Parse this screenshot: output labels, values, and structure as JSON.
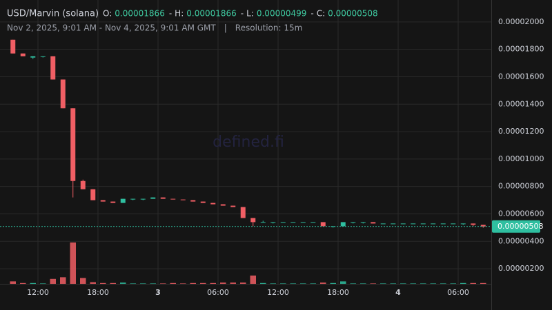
{
  "chart_data": {
    "type": "candlestick",
    "symbol": "USD/Marvin (solana)",
    "legend_values": [
      {
        "label": "O:",
        "value": "0.00001866"
      },
      {
        "label": "H:",
        "value": "0.00001866"
      },
      {
        "label": "L:",
        "value": "0.00000499"
      },
      {
        "label": "C:",
        "value": "0.00000508"
      }
    ],
    "legend_separator": "-",
    "subtitle": "Nov 2, 2025, 9:01 AM - Nov 4, 2025, 9:01 AM GMT",
    "subtitle_separator": "|",
    "resolution": "Resolution: 15m",
    "watermark": "defined.fi",
    "last_price_label": "0.00000508",
    "up_color": "#2fbfa0",
    "down_color": "#f05e64",
    "grid": true,
    "categories": [
      null,
      null,
      null,
      "12:00",
      null,
      null,
      null,
      null,
      null,
      "18:00",
      null,
      null,
      null,
      null,
      null,
      "3",
      null,
      null,
      null,
      null,
      null,
      "06:00",
      null,
      null,
      null,
      null,
      null,
      "12:00",
      null,
      null,
      null,
      null,
      null,
      "18:00",
      null,
      null,
      null,
      null,
      null,
      "4",
      null,
      null,
      null,
      null,
      null,
      "06:00",
      null,
      null
    ],
    "open": [
      1.87e-05,
      1.77e-05,
      1.74e-05,
      1.75e-05,
      1.75e-05,
      1.58e-05,
      1.37e-05,
      8.4e-06,
      7.8e-06,
      7e-06,
      6.9e-06,
      6.8e-06,
      7.1e-06,
      7.1e-06,
      7.1e-06,
      7.2e-06,
      7.1e-06,
      7.05e-06,
      7e-06,
      6.9e-06,
      6.8e-06,
      6.7e-06,
      6.6e-06,
      6.5e-06,
      5.7e-06,
      5.4e-06,
      5.4e-06,
      5.4e-06,
      5.4e-06,
      5.4e-06,
      5.4e-06,
      5.4e-06,
      5.1e-06,
      5.1e-06,
      5.4e-06,
      5.4e-06,
      5.4e-06,
      5.3e-06,
      5.3e-06,
      5.3e-06,
      5.3e-06,
      5.3e-06,
      5.3e-06,
      5.3e-06,
      5.3e-06,
      5.3e-06,
      5.3e-06,
      5.2e-06
    ],
    "high": [
      1.87e-05,
      1.77e-05,
      1.75e-05,
      1.75e-05,
      1.75e-05,
      1.58e-05,
      1.37e-05,
      8.5e-06,
      7.8e-06,
      7e-06,
      6.9e-06,
      7.1e-06,
      7.1e-06,
      7.1e-06,
      7.2e-06,
      7.2e-06,
      7.1e-06,
      7.05e-06,
      7e-06,
      6.9e-06,
      6.8e-06,
      6.7e-06,
      6.6e-06,
      6.5e-06,
      5.7e-06,
      5.5e-06,
      5.4e-06,
      5.4e-06,
      5.4e-06,
      5.4e-06,
      5.4e-06,
      5.4e-06,
      5.1e-06,
      5.4e-06,
      5.4e-06,
      5.4e-06,
      5.4e-06,
      5.3e-06,
      5.3e-06,
      5.3e-06,
      5.3e-06,
      5.3e-06,
      5.3e-06,
      5.3e-06,
      5.3e-06,
      5.3e-06,
      5.3e-06,
      5.2e-06
    ],
    "low": [
      1.77e-05,
      1.75e-05,
      1.73e-05,
      1.74e-05,
      1.58e-05,
      1.37e-05,
      7.2e-06,
      7.8e-06,
      7e-06,
      6.9e-06,
      6.8e-06,
      6.8e-06,
      7e-06,
      7e-06,
      7.1e-06,
      7.1e-06,
      7.05e-06,
      7e-06,
      6.9e-06,
      6.8e-06,
      6.7e-06,
      6.6e-06,
      6.5e-06,
      5.7e-06,
      5.1e-06,
      5.4e-06,
      5.3e-06,
      5.4e-06,
      5.4e-06,
      5.4e-06,
      5.4e-06,
      5.1e-06,
      5e-06,
      5.1e-06,
      5.3e-06,
      5.3e-06,
      5.3e-06,
      5.3e-06,
      5.3e-06,
      5.3e-06,
      5.3e-06,
      5.3e-06,
      5.3e-06,
      5.3e-06,
      5.3e-06,
      5.2e-06,
      5.1e-06,
      4.99e-06
    ],
    "close": [
      1.77e-05,
      1.75e-05,
      1.75e-05,
      1.75e-05,
      1.58e-05,
      1.37e-05,
      8.4e-06,
      7.8e-06,
      7e-06,
      6.9e-06,
      6.8e-06,
      7.1e-06,
      7.1e-06,
      7.1e-06,
      7.2e-06,
      7.1e-06,
      7.05e-06,
      7e-06,
      6.9e-06,
      6.8e-06,
      6.7e-06,
      6.6e-06,
      6.5e-06,
      5.7e-06,
      5.4e-06,
      5.4e-06,
      5.4e-06,
      5.4e-06,
      5.4e-06,
      5.4e-06,
      5.4e-06,
      5.1e-06,
      5.1e-06,
      5.4e-06,
      5.4e-06,
      5.4e-06,
      5.3e-06,
      5.3e-06,
      5.3e-06,
      5.3e-06,
      5.3e-06,
      5.3e-06,
      5.3e-06,
      5.3e-06,
      5.3e-06,
      5.3e-06,
      5.2e-06,
      5.08e-06
    ],
    "volume": [
      6,
      2,
      2,
      1,
      12,
      16,
      100,
      14,
      4,
      2,
      2,
      3,
      1,
      1,
      1,
      1,
      2,
      1,
      2,
      2,
      2,
      3,
      3,
      3,
      20,
      2,
      1,
      1,
      1,
      1,
      1,
      3,
      2,
      6,
      1,
      1,
      1,
      1,
      1,
      1,
      1,
      1,
      1,
      1,
      1,
      2,
      2,
      2
    ],
    "ylim": [
      9e-07,
      2.16e-05
    ],
    "yticks": [
      {
        "value": 2e-06,
        "label": "0.00000200"
      },
      {
        "value": 4e-06,
        "label": "0.00000400"
      },
      {
        "value": 6e-06,
        "label": "0.00000600"
      },
      {
        "value": 8e-06,
        "label": "0.00000800"
      },
      {
        "value": 1e-05,
        "label": "0.00001000"
      },
      {
        "value": 1.2e-05,
        "label": "0.00001200"
      },
      {
        "value": 1.4e-05,
        "label": "0.00001400"
      },
      {
        "value": 1.6e-05,
        "label": "0.00001600"
      },
      {
        "value": 1.8e-05,
        "label": "0.00001800"
      },
      {
        "value": 2e-05,
        "label": "0.00002000"
      }
    ]
  }
}
